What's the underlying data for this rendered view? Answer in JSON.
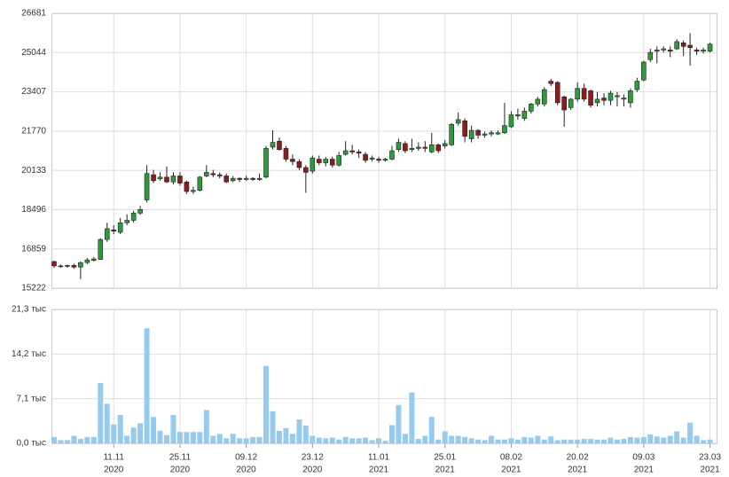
{
  "chart_data": [
    {
      "type": "candlestick",
      "categories": [
        null,
        null,
        null,
        null,
        null,
        null,
        null,
        null,
        null,
        [
          "11.11",
          "2020"
        ],
        null,
        null,
        null,
        null,
        null,
        null,
        null,
        null,
        null,
        [
          "25.11",
          "2020"
        ],
        null,
        null,
        null,
        null,
        null,
        null,
        null,
        null,
        null,
        [
          "09.12",
          "2020"
        ],
        null,
        null,
        null,
        null,
        null,
        null,
        null,
        null,
        null,
        [
          "23.12",
          "2020"
        ],
        null,
        null,
        null,
        null,
        null,
        null,
        null,
        null,
        null,
        [
          "11.01",
          "2021"
        ],
        null,
        null,
        null,
        null,
        null,
        null,
        null,
        null,
        null,
        [
          "25.01",
          "2021"
        ],
        null,
        null,
        null,
        null,
        null,
        null,
        null,
        null,
        null,
        [
          "08.02",
          "2021"
        ],
        null,
        null,
        null,
        null,
        null,
        null,
        null,
        null,
        null,
        [
          "20.02",
          "2021"
        ],
        null,
        null,
        null,
        null,
        null,
        null,
        null,
        null,
        null,
        [
          "09.03",
          "2021"
        ],
        null,
        null,
        null,
        null,
        null,
        null,
        null,
        null,
        null,
        [
          "23.03",
          "2021"
        ]
      ],
      "open": [
        16330,
        16150,
        16130,
        16170,
        16100,
        16290,
        16380,
        16420,
        17250,
        17650,
        17550,
        17950,
        18050,
        18350,
        18900,
        19950,
        19780,
        19850,
        19650,
        19900,
        19650,
        19250,
        19300,
        19900,
        20000,
        19950,
        19900,
        19700,
        19800,
        19750,
        19800,
        19750,
        19850,
        21100,
        21350,
        21050,
        20600,
        20500,
        20250,
        20100,
        20600,
        20450,
        20600,
        20350,
        20800,
        20950,
        20900,
        20800,
        20600,
        20600,
        20550,
        20600,
        21000,
        21250,
        21000,
        21050,
        21100,
        20900,
        21200,
        21150,
        21200,
        22100,
        22200,
        21450,
        21800,
        21600,
        21650,
        21650,
        21700,
        21950,
        22400,
        22300,
        22600,
        22900,
        22900,
        23850,
        23800,
        23200,
        22750,
        23100,
        23550,
        23450,
        22950,
        23150,
        23050,
        23200,
        23100,
        22950,
        23500,
        23900,
        24750,
        25100,
        25150,
        25150,
        25200,
        25450,
        25350,
        25150,
        25100,
        25100
      ],
      "high": [
        16370,
        16210,
        16200,
        16250,
        16330,
        16480,
        16520,
        17300,
        17950,
        17850,
        18150,
        18300,
        18450,
        18650,
        20350,
        20150,
        20050,
        20300,
        20050,
        20050,
        19700,
        19450,
        19900,
        20350,
        20150,
        20050,
        20000,
        19900,
        19850,
        19900,
        19850,
        20000,
        21150,
        21800,
        21500,
        21150,
        20800,
        20600,
        20350,
        20750,
        20750,
        20700,
        20700,
        20900,
        21350,
        21200,
        21000,
        20900,
        20750,
        20700,
        20650,
        21150,
        21450,
        21350,
        21450,
        21300,
        21350,
        21700,
        21250,
        21400,
        22100,
        22550,
        22300,
        22000,
        21850,
        21750,
        21800,
        21800,
        22950,
        22600,
        22700,
        22750,
        22950,
        23200,
        23600,
        23950,
        23850,
        23250,
        23150,
        23800,
        23750,
        23500,
        23400,
        23350,
        23450,
        23400,
        23300,
        23550,
        24000,
        24700,
        25200,
        25300,
        25300,
        25300,
        25600,
        25550,
        25850,
        25250,
        25250,
        25450
      ],
      "low": [
        16070,
        16070,
        16070,
        16030,
        15600,
        16220,
        16330,
        16400,
        17150,
        17480,
        17480,
        17850,
        17950,
        18280,
        18800,
        19600,
        19700,
        19600,
        19550,
        19500,
        19150,
        19150,
        19250,
        19850,
        19850,
        19800,
        19600,
        19650,
        19650,
        19700,
        19700,
        19700,
        19800,
        21000,
        20950,
        20500,
        20350,
        20150,
        19200,
        20000,
        20350,
        20300,
        20250,
        20300,
        20750,
        20800,
        20650,
        20450,
        20500,
        20450,
        20500,
        20550,
        20900,
        20850,
        20900,
        20950,
        20900,
        20850,
        20850,
        21050,
        21150,
        22000,
        21300,
        21300,
        21450,
        21500,
        21550,
        21600,
        21650,
        21900,
        22250,
        22200,
        22500,
        22800,
        22800,
        23650,
        22850,
        21950,
        22650,
        23000,
        23000,
        22750,
        22800,
        22850,
        22850,
        22800,
        22800,
        22750,
        23400,
        23850,
        24650,
        24600,
        25050,
        24850,
        25150,
        24900,
        24500,
        24950,
        25000,
        25050
      ],
      "close": [
        16150,
        16130,
        16170,
        16100,
        16290,
        16400,
        16440,
        17250,
        17700,
        17600,
        17950,
        18050,
        18350,
        18500,
        20000,
        19700,
        19850,
        19650,
        19900,
        19600,
        19250,
        19300,
        19850,
        20050,
        19950,
        19900,
        19650,
        19800,
        19750,
        19800,
        19750,
        19800,
        21050,
        21300,
        21000,
        20600,
        20500,
        20250,
        20050,
        20650,
        20450,
        20600,
        20350,
        20750,
        20950,
        20900,
        20850,
        20550,
        20650,
        20550,
        20600,
        20950,
        21300,
        20950,
        21050,
        21100,
        21050,
        21200,
        20950,
        21250,
        22050,
        22250,
        21550,
        21800,
        21600,
        21650,
        21700,
        21700,
        22000,
        22450,
        22450,
        22600,
        22900,
        23100,
        23500,
        23750,
        22950,
        22650,
        23100,
        23550,
        23100,
        22850,
        23100,
        23050,
        23350,
        23250,
        23150,
        23450,
        23850,
        24650,
        25050,
        25150,
        25200,
        25100,
        25500,
        25300,
        25250,
        25100,
        25150,
        25400
      ],
      "up_color": "#2e9a3a",
      "down_color": "#8a1c1c",
      "ylim": [
        15222,
        26681
      ],
      "yticks": [
        15222,
        16859,
        18496,
        20133,
        21770,
        23407,
        25044,
        26681
      ],
      "grid": true
    },
    {
      "type": "bar",
      "values": [
        1.0,
        0.5,
        0.5,
        1.2,
        0.7,
        1.0,
        1.0,
        9.6,
        6.3,
        3.0,
        4.5,
        1.2,
        2.5,
        3.2,
        18.3,
        4.2,
        2.0,
        1.3,
        4.5,
        1.8,
        1.8,
        1.8,
        1.8,
        5.3,
        1.2,
        1.5,
        0.8,
        1.5,
        0.8,
        0.8,
        1.0,
        1.0,
        12.3,
        5.1,
        2.0,
        2.4,
        1.5,
        3.8,
        2.8,
        1.2,
        0.9,
        0.8,
        0.9,
        0.6,
        1.0,
        0.8,
        0.8,
        0.9,
        0.5,
        0.8,
        0.4,
        2.9,
        6.1,
        1.5,
        8.1,
        0.7,
        1.2,
        4.2,
        0.6,
        1.9,
        1.2,
        1.2,
        1.0,
        0.8,
        0.6,
        0.5,
        1.2,
        0.6,
        0.6,
        0.8,
        0.6,
        1.0,
        0.9,
        1.2,
        0.6,
        1.1,
        0.5,
        0.6,
        0.6,
        0.6,
        0.7,
        0.7,
        0.6,
        0.6,
        0.9,
        0.6,
        0.7,
        1.0,
        0.9,
        1.0,
        1.4,
        1.1,
        0.9,
        1.2,
        1.9,
        0.9,
        3.3,
        1.2,
        0.5,
        0.6
      ],
      "color": "#96cbef",
      "ylim": [
        0,
        21.3
      ],
      "yticks": [
        {
          "value": 0,
          "label": "0,0 тыс"
        },
        {
          "value": 7.1,
          "label": "7,1 тыс"
        },
        {
          "value": 14.2,
          "label": "14,2 тыс"
        },
        {
          "value": 21.3,
          "label": "21,3 тыс"
        }
      ],
      "grid": true
    }
  ]
}
